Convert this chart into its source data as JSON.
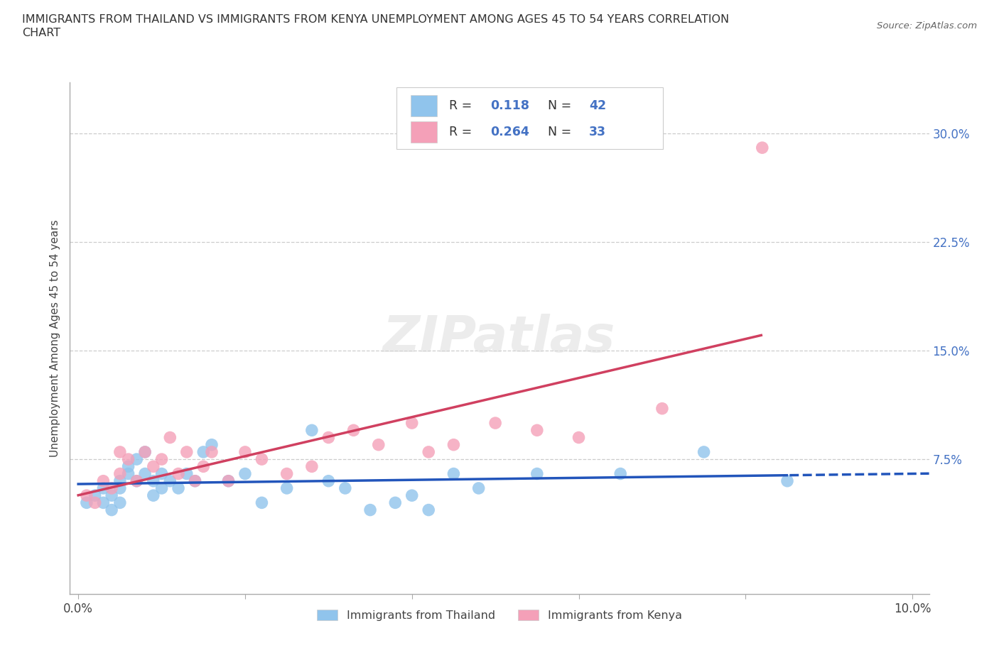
{
  "title_line1": "IMMIGRANTS FROM THAILAND VS IMMIGRANTS FROM KENYA UNEMPLOYMENT AMONG AGES 45 TO 54 YEARS CORRELATION",
  "title_line2": "CHART",
  "source_text": "Source: ZipAtlas.com",
  "ylabel": "Unemployment Among Ages 45 to 54 years",
  "xlim": [
    -0.001,
    0.102
  ],
  "ylim": [
    -0.018,
    0.335
  ],
  "xticks": [
    0.0,
    0.02,
    0.04,
    0.06,
    0.08,
    0.1
  ],
  "xticklabels": [
    "0.0%",
    "",
    "",
    "",
    "",
    "10.0%"
  ],
  "ytick_positions": [
    0.0,
    0.075,
    0.15,
    0.225,
    0.3
  ],
  "yticklabels_right": [
    "",
    "7.5%",
    "15.0%",
    "22.5%",
    "30.0%"
  ],
  "thailand_color": "#90C4EC",
  "kenya_color": "#F4A0B8",
  "trend_thailand_color": "#2255BB",
  "trend_kenya_color": "#D04060",
  "R_thailand": 0.118,
  "N_thailand": 42,
  "R_kenya": 0.264,
  "N_kenya": 33,
  "legend_label_thailand": "Immigrants from Thailand",
  "legend_label_kenya": "Immigrants from Kenya",
  "watermark": "ZIPatlas",
  "background_color": "#FFFFFF",
  "grid_color": "#CCCCCC",
  "thailand_x": [
    0.001,
    0.002,
    0.003,
    0.003,
    0.004,
    0.004,
    0.005,
    0.005,
    0.005,
    0.006,
    0.006,
    0.007,
    0.007,
    0.008,
    0.008,
    0.009,
    0.009,
    0.01,
    0.01,
    0.011,
    0.012,
    0.013,
    0.014,
    0.015,
    0.016,
    0.018,
    0.02,
    0.022,
    0.025,
    0.028,
    0.03,
    0.032,
    0.035,
    0.038,
    0.04,
    0.042,
    0.045,
    0.048,
    0.055,
    0.065,
    0.075,
    0.085
  ],
  "thailand_y": [
    0.045,
    0.05,
    0.045,
    0.055,
    0.05,
    0.04,
    0.06,
    0.055,
    0.045,
    0.065,
    0.07,
    0.075,
    0.06,
    0.08,
    0.065,
    0.06,
    0.05,
    0.065,
    0.055,
    0.06,
    0.055,
    0.065,
    0.06,
    0.08,
    0.085,
    0.06,
    0.065,
    0.045,
    0.055,
    0.095,
    0.06,
    0.055,
    0.04,
    0.045,
    0.05,
    0.04,
    0.065,
    0.055,
    0.065,
    0.065,
    0.08,
    0.06
  ],
  "kenya_x": [
    0.001,
    0.002,
    0.003,
    0.004,
    0.005,
    0.005,
    0.006,
    0.007,
    0.008,
    0.009,
    0.01,
    0.011,
    0.012,
    0.013,
    0.014,
    0.015,
    0.016,
    0.018,
    0.02,
    0.022,
    0.025,
    0.028,
    0.03,
    0.033,
    0.036,
    0.04,
    0.042,
    0.045,
    0.05,
    0.055,
    0.06,
    0.07,
    0.082
  ],
  "kenya_y": [
    0.05,
    0.045,
    0.06,
    0.055,
    0.08,
    0.065,
    0.075,
    0.06,
    0.08,
    0.07,
    0.075,
    0.09,
    0.065,
    0.08,
    0.06,
    0.07,
    0.08,
    0.06,
    0.08,
    0.075,
    0.065,
    0.07,
    0.09,
    0.095,
    0.085,
    0.1,
    0.08,
    0.085,
    0.1,
    0.095,
    0.09,
    0.11,
    0.29
  ],
  "figsize": [
    14.06,
    9.3
  ],
  "dpi": 100
}
